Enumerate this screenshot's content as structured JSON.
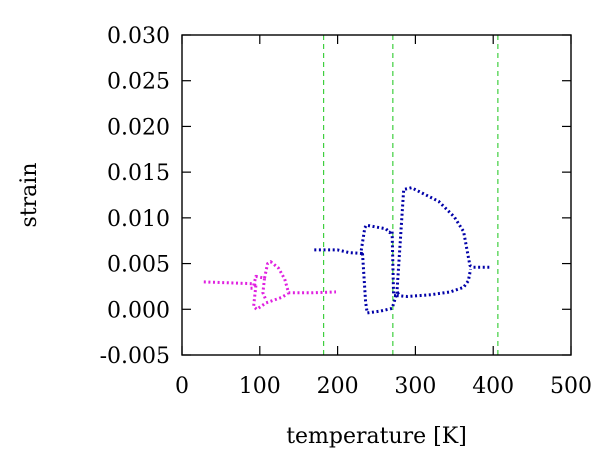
{
  "chart_data": {
    "type": "line",
    "xlabel": "temperature [K]",
    "ylabel": "strain",
    "xlim": [
      0,
      500
    ],
    "ylim": [
      -0.005,
      0.03
    ],
    "x_ticks": [
      0,
      100,
      200,
      300,
      400,
      500
    ],
    "y_ticks": [
      -0.005,
      0.0,
      0.005,
      0.01,
      0.015,
      0.02,
      0.025,
      0.03
    ],
    "x_tick_labels": [
      "0",
      "100",
      "200",
      "300",
      "400",
      "500"
    ],
    "y_tick_labels": [
      "-0.005",
      "0.000",
      "0.005",
      "0.010",
      "0.015",
      "0.020",
      "0.025",
      "0.030"
    ],
    "grid": false,
    "legend": "none",
    "vertical_lines": {
      "color": "#3fcf3f",
      "style": "dashed",
      "x": [
        182,
        271,
        406
      ]
    },
    "series": [
      {
        "color": "#e020e0",
        "segments": [
          [
            [
              28,
              0.003
            ],
            [
              60,
              0.0029
            ],
            [
              90,
              0.0028
            ],
            [
              95,
              0.0026
            ]
          ],
          [
            [
              95,
              0.0026
            ],
            [
              92,
              0.0003
            ],
            [
              96,
              0.0
            ],
            [
              108,
              0.0007
            ],
            [
              128,
              0.0013
            ],
            [
              136,
              0.0017
            ]
          ],
          [
            [
              92,
              0.0026
            ],
            [
              95,
              0.0036
            ],
            [
              106,
              0.0034
            ],
            [
              104,
              0.0018
            ],
            [
              108,
              0.001
            ]
          ],
          [
            [
              106,
              0.0034
            ],
            [
              110,
              0.005
            ],
            [
              114,
              0.0052
            ],
            [
              124,
              0.0045
            ],
            [
              132,
              0.0033
            ],
            [
              137,
              0.0018
            ],
            [
              168,
              0.0018
            ],
            [
              198,
              0.0019
            ]
          ],
          [
            [
              88,
              0.0023
            ],
            [
              94,
              0.0023
            ]
          ]
        ]
      },
      {
        "color": "#0000a8",
        "segments": [
          [
            [
              170,
              0.0065
            ],
            [
              195,
              0.0065
            ],
            [
              200,
              0.0065
            ],
            [
              215,
              0.0062
            ],
            [
              232,
              0.0061
            ]
          ],
          [
            [
              232,
              0.006
            ],
            [
              230,
              0.0062
            ],
            [
              235,
              0.0089
            ],
            [
              237,
              0.0092
            ],
            [
              262,
              0.0088
            ],
            [
              267,
              0.0084
            ],
            [
              271,
              0.0087
            ]
          ],
          [
            [
              232,
              0.0061
            ],
            [
              236,
              0.0008
            ],
            [
              238,
              -0.0004
            ],
            [
              255,
              -0.0002
            ],
            [
              270,
              0.0001
            ],
            [
              276,
              0.0017
            ],
            [
              280,
              0.0019
            ]
          ],
          [
            [
              270,
              0.0085
            ],
            [
              272,
              0.0015
            ],
            [
              276,
              0.0015
            ],
            [
              285,
              0.0131
            ],
            [
              295,
              0.0133
            ],
            [
              330,
              0.0118
            ],
            [
              350,
              0.0101
            ],
            [
              362,
              0.0085
            ],
            [
              370,
              0.0048
            ],
            [
              374,
              0.0046
            ],
            [
              395,
              0.0046
            ]
          ],
          [
            [
              276,
              0.0015
            ],
            [
              290,
              0.0014
            ],
            [
              320,
              0.0016
            ],
            [
              345,
              0.0019
            ],
            [
              362,
              0.0024
            ],
            [
              368,
              0.0031
            ],
            [
              371,
              0.0044
            ]
          ]
        ]
      }
    ]
  }
}
